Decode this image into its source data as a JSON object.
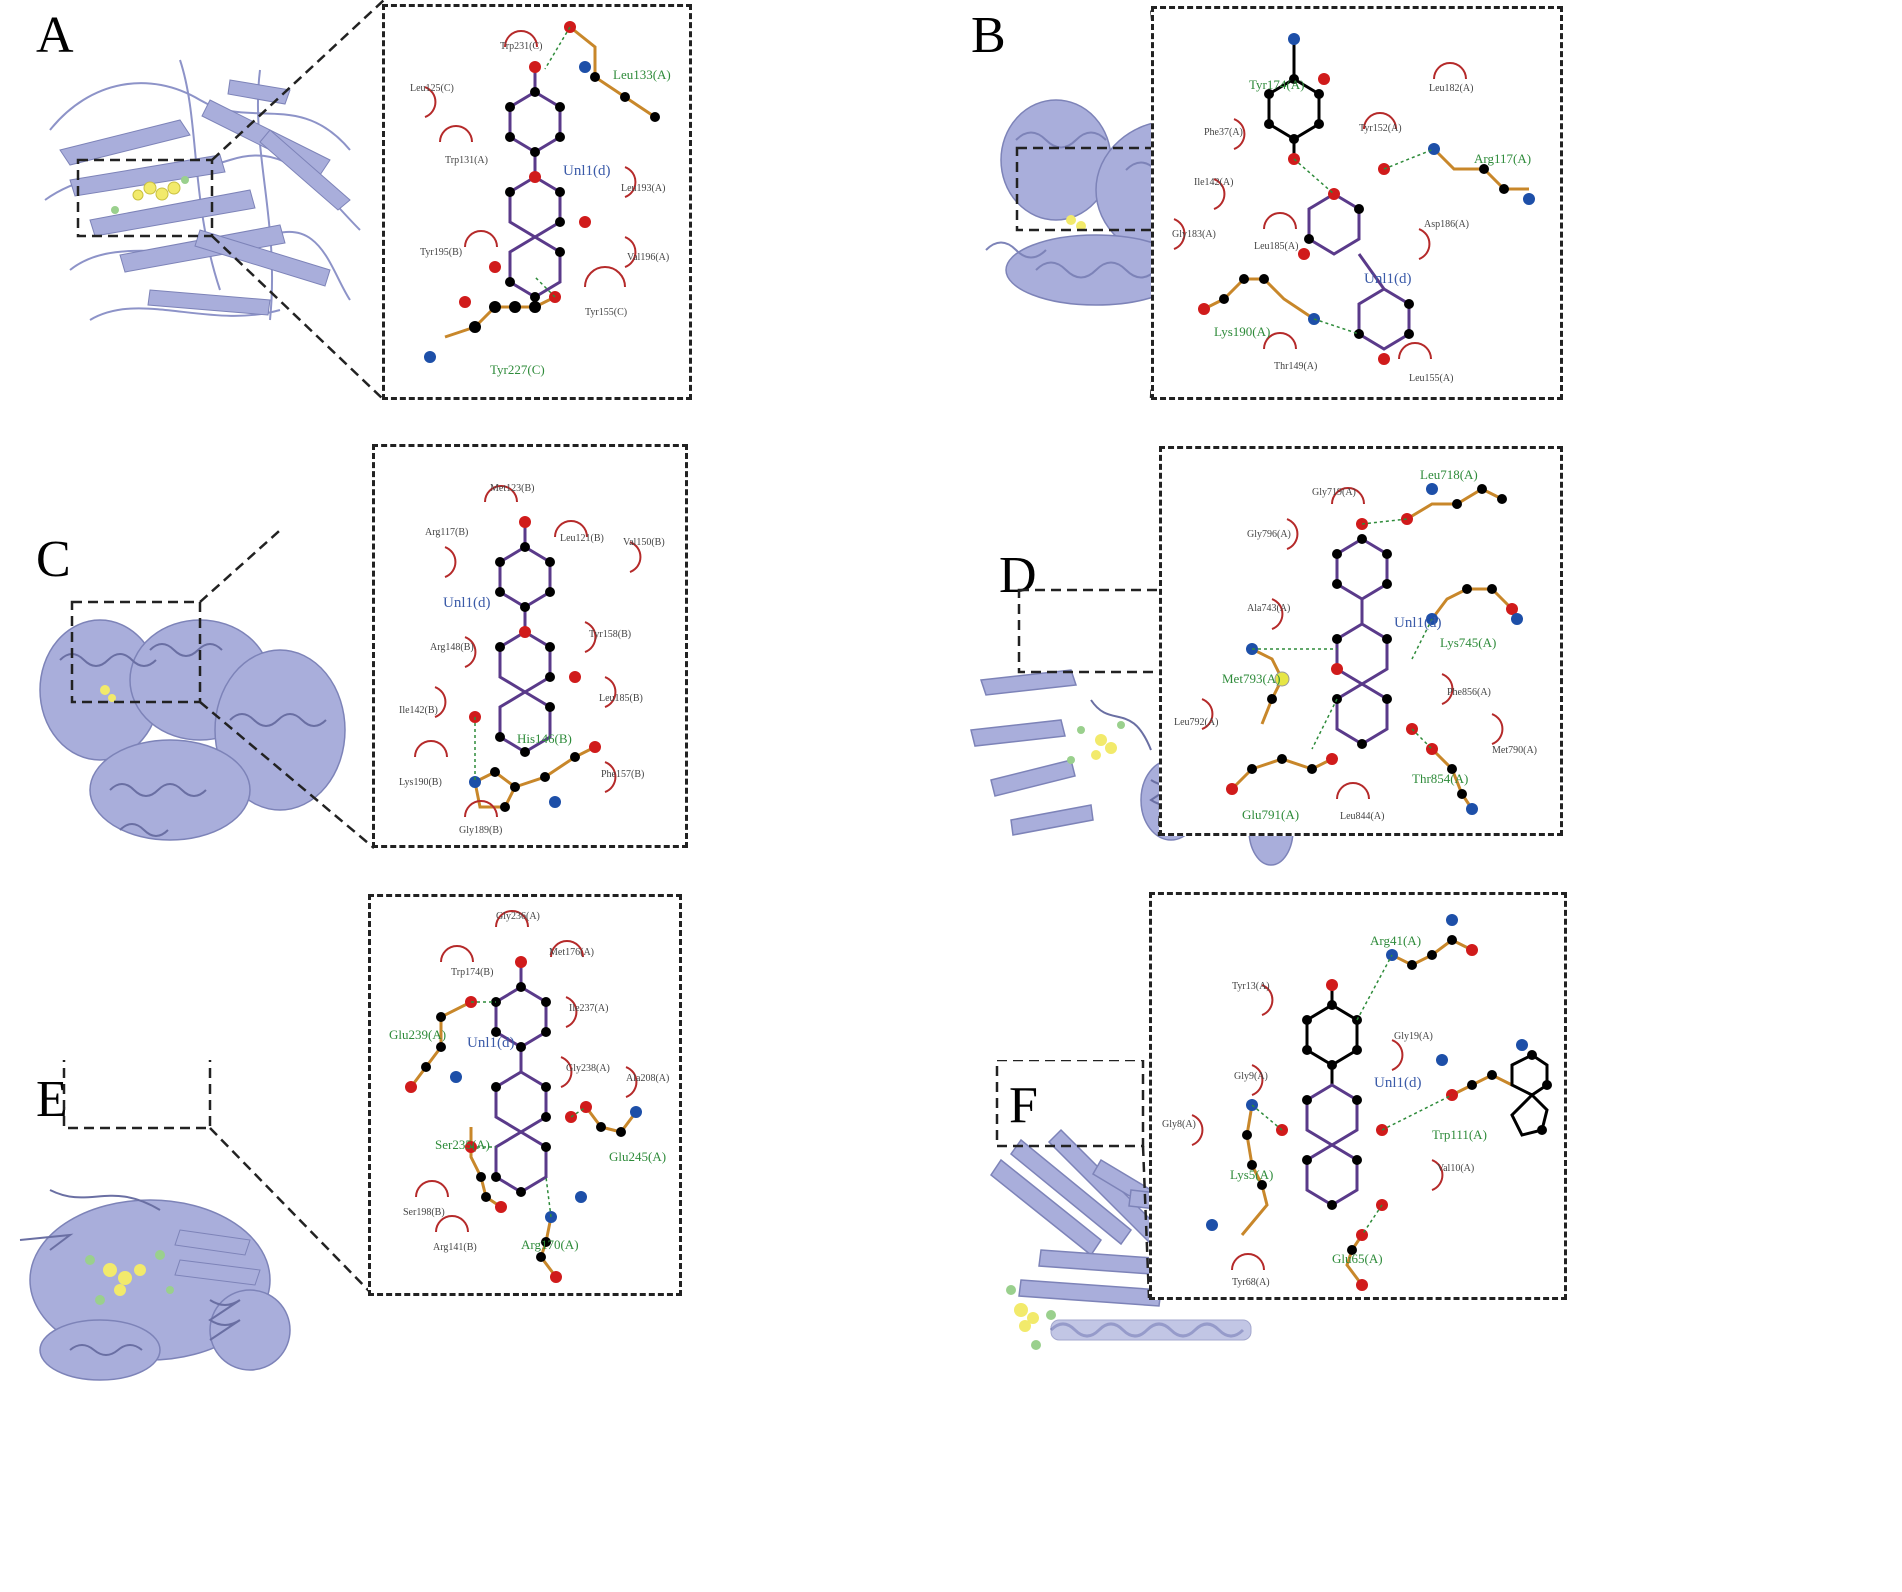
{
  "colors": {
    "protein": "#a9aedb",
    "protein_dark": "#7d83b8",
    "ligand": "#f2ea6b",
    "ligand_alt": "#9ad08d",
    "hydrophobic": "#b52a2a",
    "hbond": "#2e8b3a",
    "carbon": "#000000",
    "oxygen": "#d01b1b",
    "nitrogen": "#1d4fa8",
    "sulfur": "#e6e645",
    "bond_ligand": "#5a3a8a",
    "bond_residue": "#c8872a"
  },
  "panels": [
    {
      "letter": "A",
      "ligand": "Unl1(d)",
      "hbond_residues": [
        "Leu133(A)",
        "Tyr227(C)"
      ],
      "hydrophobic_residues": [
        "Trp231(C)",
        "Leu125(C)",
        "Trp131(A)",
        "Leu193(A)",
        "Tyr195(B)",
        "Val196(A)",
        "Tyr155(C)"
      ]
    },
    {
      "letter": "B",
      "ligand": "Unl1(d)",
      "hbond_residues": [
        "Tyr174(A)",
        "Arg117(A)",
        "Lys190(A)"
      ],
      "hydrophobic_residues": [
        "Leu182(A)",
        "Phe37(A)",
        "Ile142(A)",
        "Tyr152(A)",
        "Gly183(A)",
        "Leu185(A)",
        "Asp186(A)",
        "Thr149(A)",
        "Leu155(A)"
      ]
    },
    {
      "letter": "C",
      "ligand": "Unl1(d)",
      "hbond_residues": [
        "His146(B)"
      ],
      "hydrophobic_residues": [
        "Met123(B)",
        "Arg117(B)",
        "Leu121(B)",
        "Val150(B)",
        "Arg148(B)",
        "Tyr158(B)",
        "Ile142(B)",
        "Leu185(B)",
        "Lys190(B)",
        "Phe157(B)",
        "Gly189(B)"
      ]
    },
    {
      "letter": "D",
      "ligand": "Unl1(d)",
      "hbond_residues": [
        "Leu718(A)",
        "Lys745(A)",
        "Met793(A)",
        "Thr854(A)",
        "Glu791(A)"
      ],
      "hydrophobic_residues": [
        "Gly719(A)",
        "Gly796(A)",
        "Ala743(A)",
        "Phe856(A)",
        "Leu792(A)",
        "Met790(A)",
        "Leu844(A)"
      ]
    },
    {
      "letter": "E",
      "ligand": "Unl1(d)",
      "hbond_residues": [
        "Glu239(A)",
        "Ser235(A)",
        "Glu245(A)",
        "Arg170(A)"
      ],
      "hydrophobic_residues": [
        "Gly236(A)",
        "Trp174(B)",
        "Met176(A)",
        "Ile237(A)",
        "Gly238(A)",
        "Ala208(A)",
        "Ser198(B)",
        "Arg141(B)"
      ]
    },
    {
      "letter": "F",
      "ligand": "Unl1(d)",
      "hbond_residues": [
        "Arg41(A)",
        "Trp111(A)",
        "Lys5(A)",
        "Glu65(A)"
      ],
      "hydrophobic_residues": [
        "Tyr13(A)",
        "Gly19(A)",
        "Gly9(A)",
        "Gly8(A)",
        "Val10(A)",
        "Tyr68(A)"
      ]
    }
  ]
}
